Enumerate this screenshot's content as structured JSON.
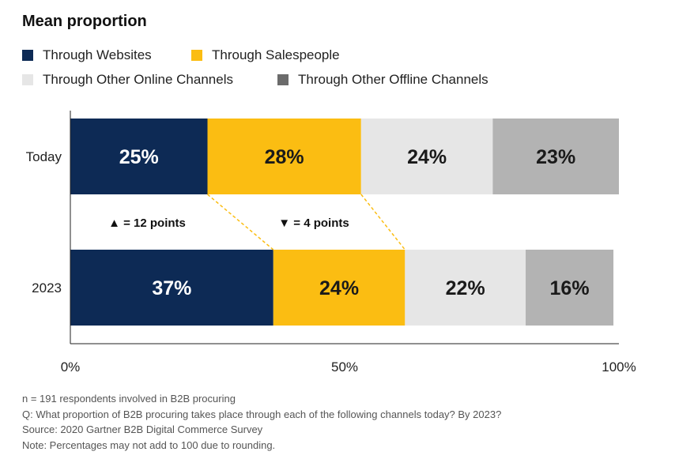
{
  "title": "Mean proportion",
  "chart_data": {
    "type": "bar",
    "orientation": "horizontal-stacked",
    "categories": [
      "Today",
      "2023"
    ],
    "series": [
      {
        "name": "Through Websites",
        "color": "#0d2a55",
        "label_color": "#ffffff",
        "values": [
          25,
          37
        ],
        "labels": [
          "25%",
          "37%"
        ]
      },
      {
        "name": "Through Salespeople",
        "color": "#fbbd12",
        "label_color": "#1a1a1a",
        "values": [
          28,
          24
        ],
        "labels": [
          "28%",
          "24%"
        ]
      },
      {
        "name": "Through Other Online Channels",
        "color": "#e6e6e6",
        "label_color": "#1a1a1a",
        "values": [
          24,
          22
        ],
        "labels": [
          "24%",
          "22%"
        ]
      },
      {
        "name": "Through Other Offline Channels",
        "color": "#b3b3b3",
        "label_color": "#1a1a1a",
        "values": [
          23,
          16
        ],
        "labels": [
          "23%",
          "16%"
        ]
      }
    ],
    "xlim": [
      0,
      100
    ],
    "x_ticks": [
      0,
      50,
      100
    ],
    "x_tick_labels": [
      "0%",
      "50%",
      "100%"
    ],
    "grid": false,
    "legend": "top-left",
    "annotations": [
      {
        "text": "▲ = 12 points",
        "series": "Through Websites"
      },
      {
        "text": "▼ = 4 points",
        "series": "Through Salespeople"
      }
    ],
    "connector_color": "#fbbd12"
  },
  "notes": [
    "n = 191 respondents involved in B2B procuring",
    "Q: What proportion of B2B procuring takes place through each of the following channels today? By 2023?",
    "Source: 2020 Gartner B2B Digital Commerce Survey",
    "Note: Percentages may not add to 100 due to rounding."
  ]
}
